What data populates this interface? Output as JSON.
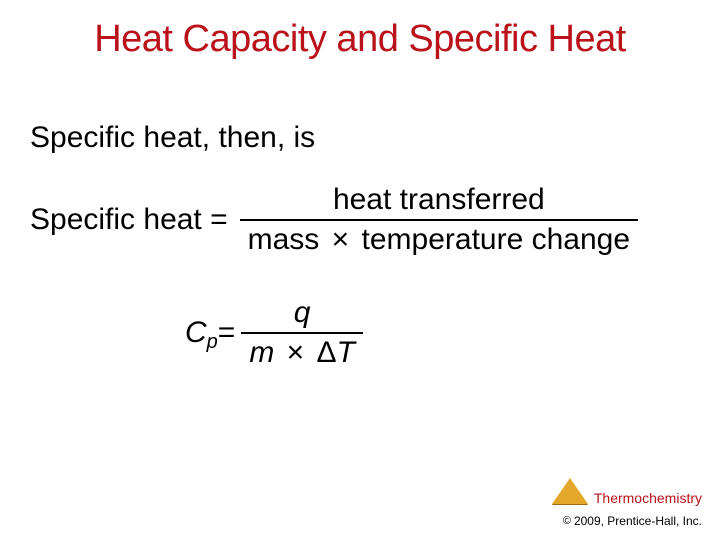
{
  "title": "Heat Capacity and Specific Heat",
  "line1": "Specific heat, then, is",
  "eq1": {
    "lhs": "Specific heat =",
    "numerator": "heat transferred",
    "denominator_before": "mass",
    "mult": "×",
    "denominator_after": "temperature change"
  },
  "eq2": {
    "C": "C",
    "subp": "p",
    "equals": "=",
    "numerator": "q",
    "den_m": "m",
    "mult": "×",
    "den_delta": "Δ",
    "den_T": "T"
  },
  "footer": {
    "chapter": "Thermochemistry",
    "copy_symbol": "©",
    "copy_text": "2009, Prentice-Hall, Inc."
  },
  "colors": {
    "title": "#b9121b",
    "text": "#000000",
    "triangle": "#e3a829",
    "background": "#ffffff"
  }
}
